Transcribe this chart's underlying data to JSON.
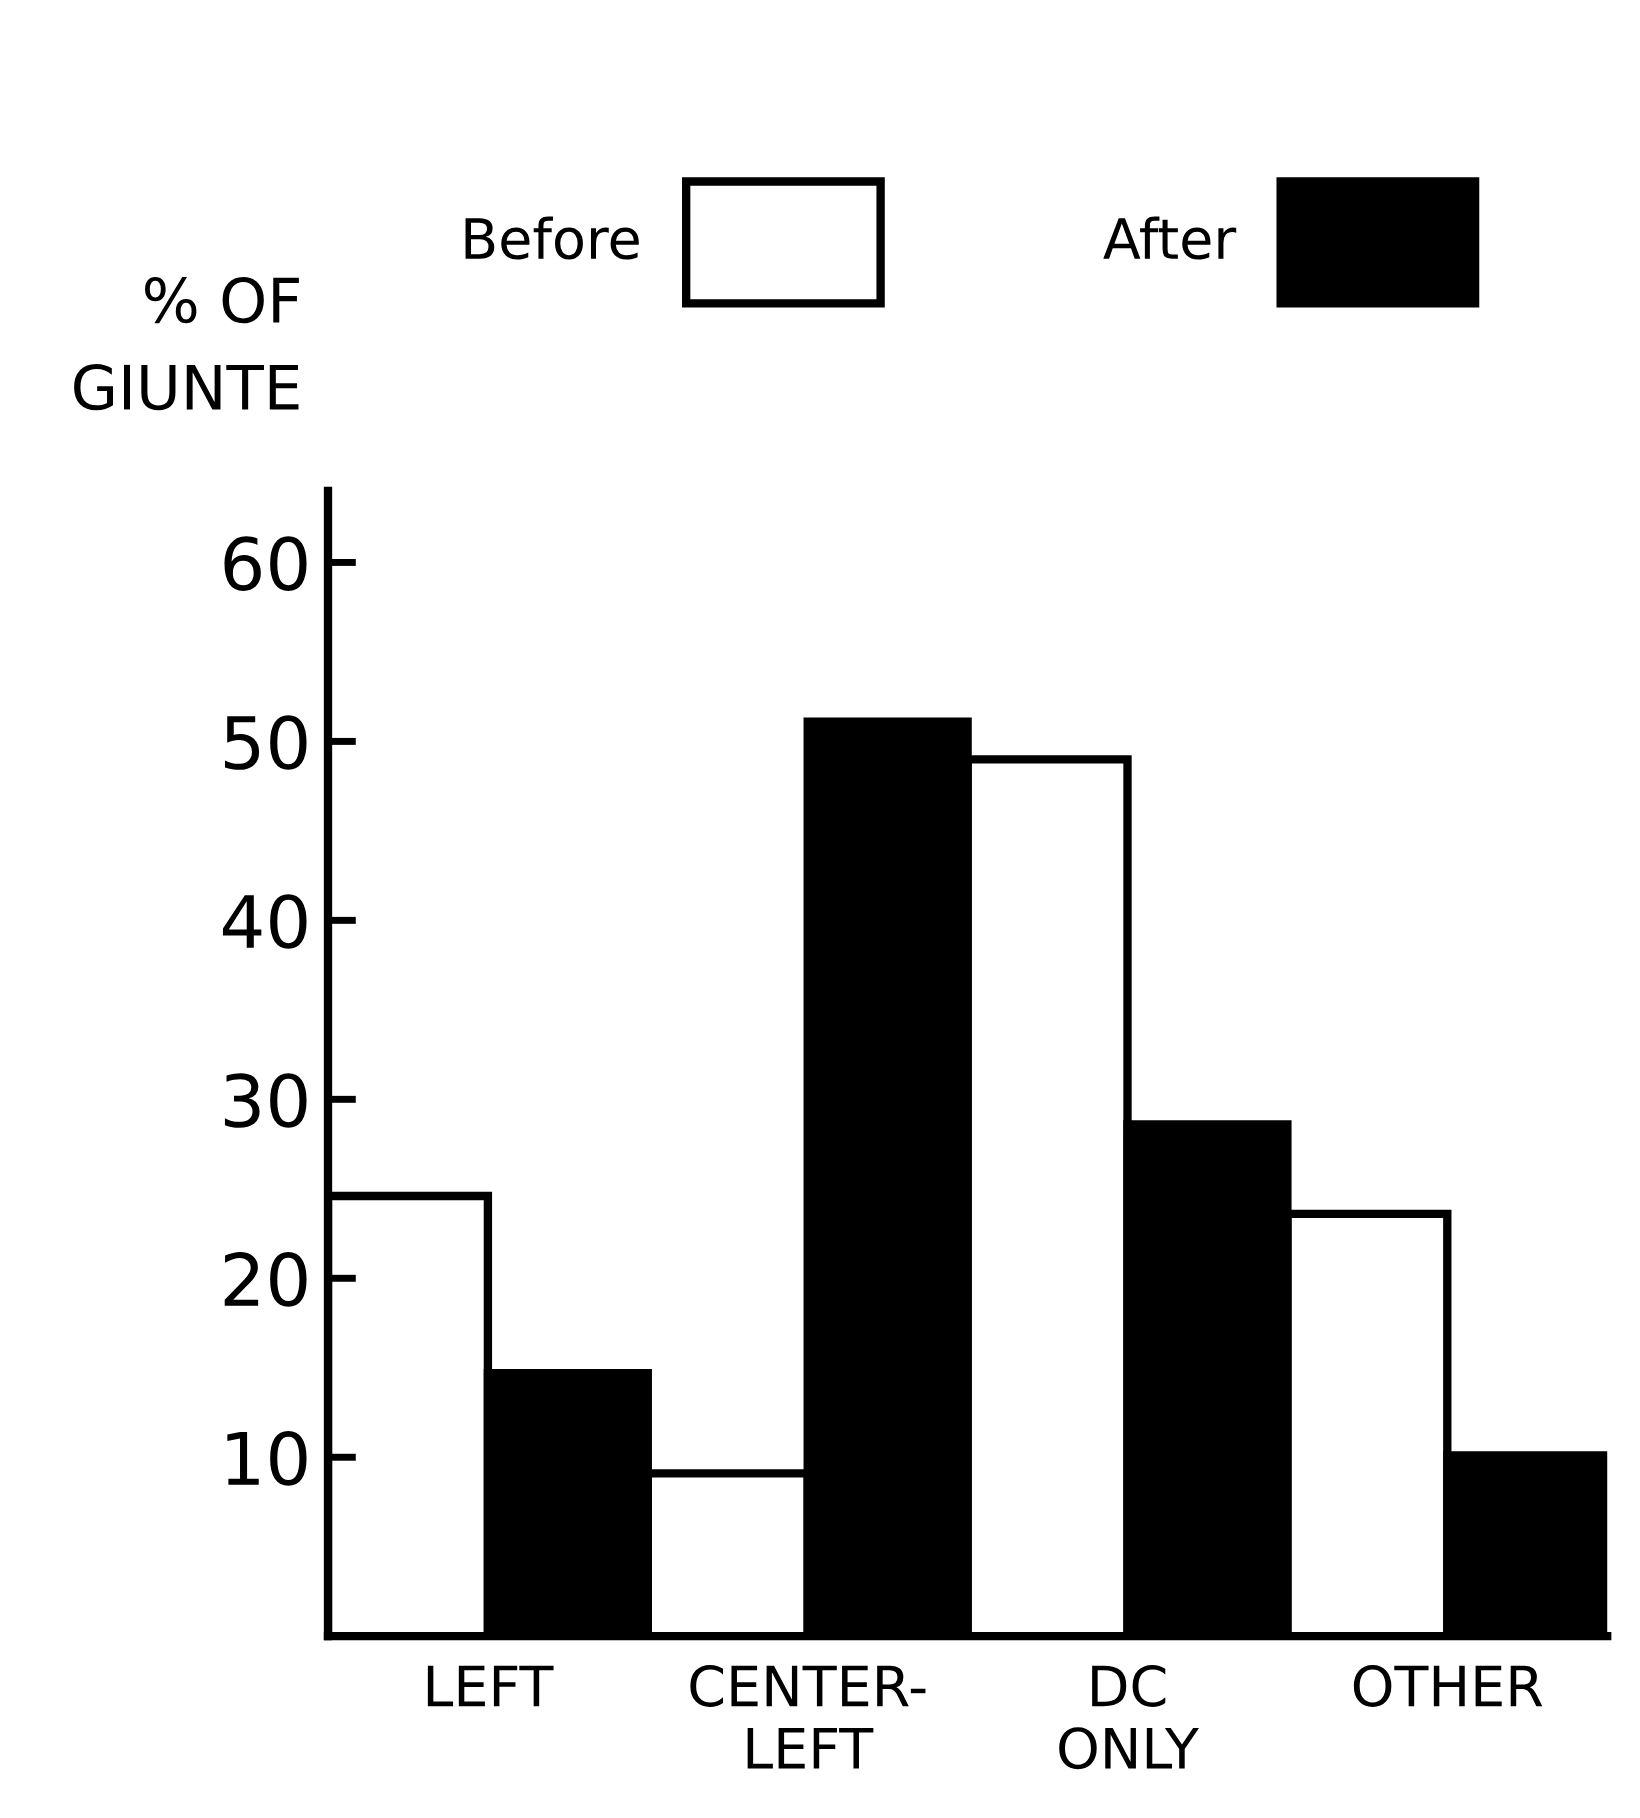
{
  "chart_data": {
    "type": "bar",
    "ylabel": "% OF\nGIUNTE",
    "categories": [
      "LEFT",
      "CENTER-\nLEFT",
      "DC\nONLY",
      "OTHER"
    ],
    "series": [
      {
        "name": "Before",
        "color": "#ffffff",
        "values": [
          24.6,
          9.1,
          49.0,
          23.6
        ]
      },
      {
        "name": "After",
        "color": "#000000",
        "values": [
          14.7,
          51.1,
          28.6,
          10.1
        ]
      }
    ],
    "ylim": [
      0,
      64
    ],
    "yticks": [
      10,
      20,
      30,
      40,
      50,
      60
    ],
    "grid": false,
    "legend": "top"
  }
}
